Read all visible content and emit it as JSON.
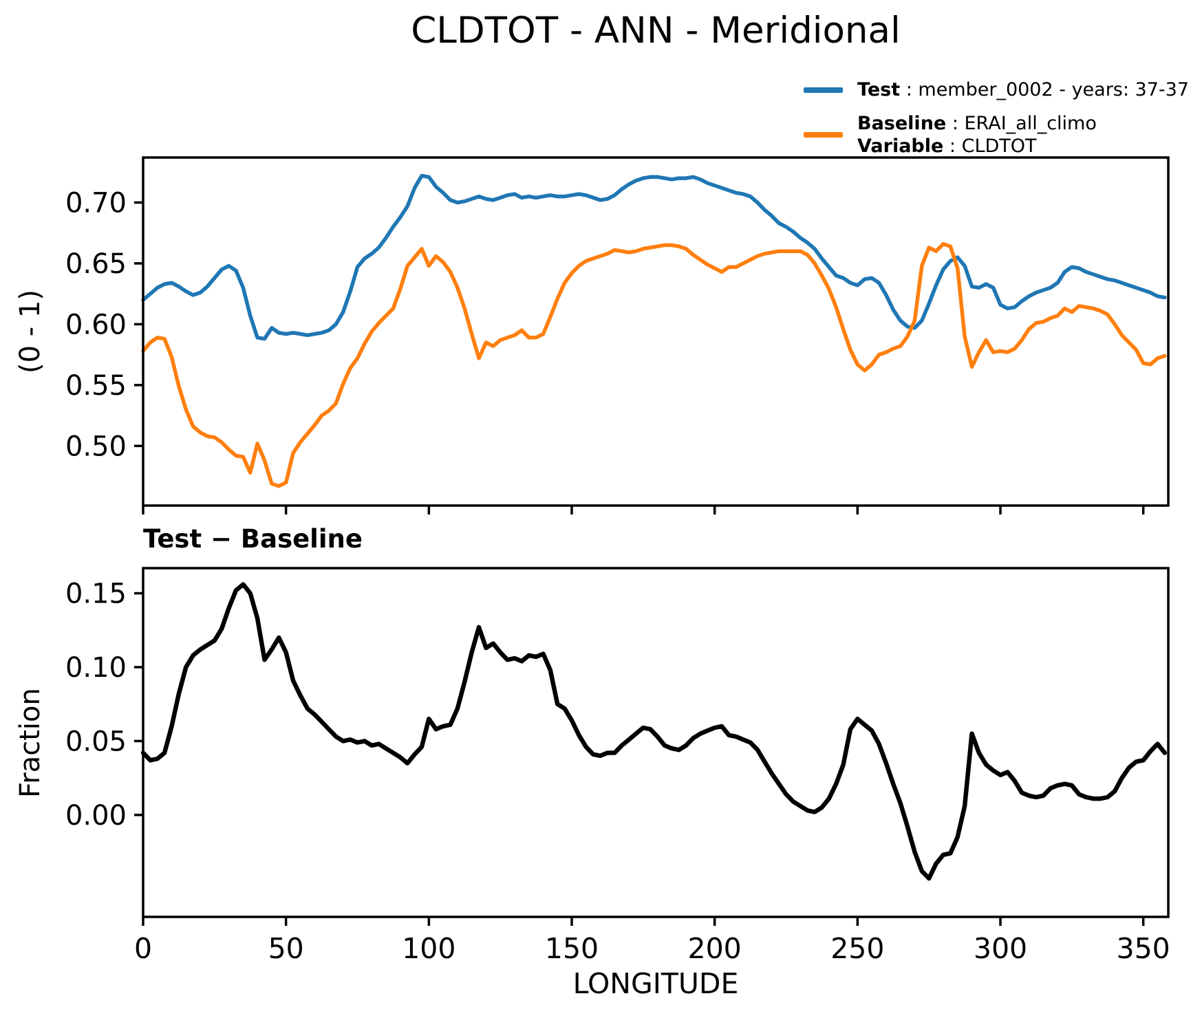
{
  "title": "CLDTOT - ANN - Meridional",
  "legend": {
    "test_bold": "Test",
    "test_rest": " : member_0002 - years: 37-37",
    "baseline_bold": "Baseline",
    "baseline_rest": " : ERAI_all_climo",
    "variable_bold": "Variable",
    "variable_rest": " : CLDTOT"
  },
  "colors": {
    "test": "#1f77b4",
    "baseline": "#ff7f0e",
    "diff": "#000000",
    "axis": "#000000"
  },
  "subtitle_bottom": "Test − Baseline",
  "labels": {
    "top_ylabel": "(0 - 1)",
    "bottom_ylabel": "Fraction",
    "xlabel": "LONGITUDE"
  },
  "chart_data": [
    {
      "type": "line",
      "title": "CLDTOT - ANN - Meridional",
      "xlabel": "",
      "ylabel": "(0 - 1)",
      "xlim": [
        0,
        358.75
      ],
      "ylim": [
        0.451,
        0.737
      ],
      "grid": false,
      "legend_position": "outside upper right",
      "yticks": [
        0.7,
        0.65,
        0.6,
        0.55,
        0.5
      ],
      "ytick_labels": [
        "0.70",
        "0.65",
        "0.60",
        "0.55",
        "0.50"
      ],
      "xticks": [
        0,
        50,
        100,
        150,
        200,
        250,
        300,
        350
      ],
      "xtick_labels": [],
      "x": [
        0,
        2.5,
        5,
        7.5,
        10,
        12.5,
        15,
        17.5,
        20,
        22.5,
        25,
        27.5,
        30,
        32.5,
        35,
        37.5,
        40,
        42.5,
        45,
        47.5,
        50,
        52.5,
        55,
        57.5,
        60,
        62.5,
        65,
        67.5,
        70,
        72.5,
        75,
        77.5,
        80,
        82.5,
        85,
        87.5,
        90,
        92.5,
        95,
        97.5,
        100,
        102.5,
        105,
        107.5,
        110,
        112.5,
        115,
        117.5,
        120,
        122.5,
        125,
        127.5,
        130,
        132.5,
        135,
        137.5,
        140,
        142.5,
        145,
        147.5,
        150,
        152.5,
        155,
        157.5,
        160,
        162.5,
        165,
        167.5,
        170,
        172.5,
        175,
        177.5,
        180,
        182.5,
        185,
        187.5,
        190,
        192.5,
        195,
        197.5,
        200,
        202.5,
        205,
        207.5,
        210,
        212.5,
        215,
        217.5,
        220,
        222.5,
        225,
        227.5,
        230,
        232.5,
        235,
        237.5,
        240,
        242.5,
        245,
        247.5,
        250,
        252.5,
        255,
        257.5,
        260,
        262.5,
        265,
        267.5,
        270,
        272.5,
        275,
        277.5,
        280,
        282.5,
        285,
        287.5,
        290,
        292.5,
        295,
        297.5,
        300,
        302.5,
        305,
        307.5,
        310,
        312.5,
        315,
        317.5,
        320,
        322.5,
        325,
        327.5,
        330,
        332.5,
        335,
        337.5,
        340,
        342.5,
        345,
        347.5,
        350,
        352.5,
        355,
        357.5
      ],
      "series": [
        {
          "name": "Test",
          "label": "Test : member_0002 - years: 37-37",
          "color": "#1f77b4",
          "values": [
            0.62,
            0.625,
            0.63,
            0.633,
            0.634,
            0.631,
            0.627,
            0.624,
            0.626,
            0.631,
            0.638,
            0.645,
            0.648,
            0.644,
            0.63,
            0.607,
            0.589,
            0.588,
            0.597,
            0.593,
            0.592,
            0.593,
            0.592,
            0.591,
            0.592,
            0.593,
            0.595,
            0.6,
            0.61,
            0.627,
            0.647,
            0.654,
            0.658,
            0.663,
            0.671,
            0.68,
            0.688,
            0.697,
            0.712,
            0.722,
            0.721,
            0.713,
            0.708,
            0.702,
            0.7,
            0.701,
            0.703,
            0.705,
            0.703,
            0.702,
            0.704,
            0.706,
            0.707,
            0.704,
            0.705,
            0.704,
            0.705,
            0.706,
            0.705,
            0.705,
            0.706,
            0.707,
            0.706,
            0.704,
            0.702,
            0.703,
            0.706,
            0.711,
            0.715,
            0.718,
            0.72,
            0.721,
            0.721,
            0.72,
            0.719,
            0.72,
            0.72,
            0.721,
            0.719,
            0.716,
            0.714,
            0.712,
            0.71,
            0.708,
            0.707,
            0.705,
            0.7,
            0.694,
            0.689,
            0.683,
            0.68,
            0.676,
            0.671,
            0.667,
            0.662,
            0.654,
            0.647,
            0.64,
            0.638,
            0.634,
            0.632,
            0.637,
            0.638,
            0.634,
            0.624,
            0.612,
            0.603,
            0.598,
            0.597,
            0.603,
            0.617,
            0.632,
            0.645,
            0.652,
            0.655,
            0.648,
            0.631,
            0.63,
            0.633,
            0.63,
            0.616,
            0.613,
            0.614,
            0.619,
            0.623,
            0.626,
            0.628,
            0.63,
            0.634,
            0.643,
            0.647,
            0.646,
            0.643,
            0.641,
            0.639,
            0.637,
            0.636,
            0.634,
            0.632,
            0.63,
            0.628,
            0.626,
            0.623,
            0.622
          ]
        },
        {
          "name": "Baseline",
          "label": "Baseline : ERAI_all_climo  Variable : CLDTOT",
          "color": "#ff7f0e",
          "values": [
            0.578,
            0.585,
            0.589,
            0.588,
            0.573,
            0.549,
            0.53,
            0.516,
            0.511,
            0.508,
            0.507,
            0.503,
            0.497,
            0.492,
            0.491,
            0.478,
            0.502,
            0.488,
            0.469,
            0.467,
            0.47,
            0.494,
            0.503,
            0.51,
            0.517,
            0.525,
            0.529,
            0.535,
            0.551,
            0.564,
            0.572,
            0.584,
            0.594,
            0.601,
            0.607,
            0.613,
            0.629,
            0.648,
            0.655,
            0.662,
            0.648,
            0.656,
            0.651,
            0.643,
            0.63,
            0.613,
            0.592,
            0.572,
            0.585,
            0.582,
            0.587,
            0.589,
            0.591,
            0.595,
            0.589,
            0.589,
            0.592,
            0.606,
            0.621,
            0.634,
            0.642,
            0.648,
            0.652,
            0.654,
            0.656,
            0.658,
            0.661,
            0.66,
            0.659,
            0.66,
            0.662,
            0.663,
            0.664,
            0.665,
            0.665,
            0.664,
            0.662,
            0.657,
            0.653,
            0.649,
            0.646,
            0.643,
            0.647,
            0.647,
            0.65,
            0.653,
            0.656,
            0.658,
            0.659,
            0.66,
            0.66,
            0.66,
            0.66,
            0.657,
            0.65,
            0.64,
            0.629,
            0.614,
            0.596,
            0.579,
            0.567,
            0.562,
            0.567,
            0.575,
            0.577,
            0.58,
            0.582,
            0.59,
            0.603,
            0.648,
            0.663,
            0.66,
            0.666,
            0.664,
            0.646,
            0.59,
            0.565,
            0.577,
            0.587,
            0.577,
            0.578,
            0.577,
            0.58,
            0.587,
            0.596,
            0.601,
            0.602,
            0.605,
            0.607,
            0.613,
            0.61,
            0.615,
            0.614,
            0.613,
            0.611,
            0.608,
            0.6,
            0.591,
            0.585,
            0.579,
            0.568,
            0.567,
            0.572,
            0.574
          ]
        }
      ]
    },
    {
      "type": "line",
      "title": "Test − Baseline",
      "xlabel": "LONGITUDE",
      "ylabel": "Fraction",
      "xlim": [
        0,
        358.75
      ],
      "ylim": [
        -0.069,
        0.167
      ],
      "grid": false,
      "yticks": [
        0.15,
        0.1,
        0.05,
        0.0
      ],
      "ytick_labels": [
        "0.15",
        "0.10",
        "0.05",
        "0.00"
      ],
      "xticks": [
        0,
        50,
        100,
        150,
        200,
        250,
        300,
        350
      ],
      "xtick_labels": [
        "0",
        "50",
        "100",
        "150",
        "200",
        "250",
        "300",
        "350"
      ],
      "x": [
        0,
        2.5,
        5,
        7.5,
        10,
        12.5,
        15,
        17.5,
        20,
        22.5,
        25,
        27.5,
        30,
        32.5,
        35,
        37.5,
        40,
        42.5,
        45,
        47.5,
        50,
        52.5,
        55,
        57.5,
        60,
        62.5,
        65,
        67.5,
        70,
        72.5,
        75,
        77.5,
        80,
        82.5,
        85,
        87.5,
        90,
        92.5,
        95,
        97.5,
        100,
        102.5,
        105,
        107.5,
        110,
        112.5,
        115,
        117.5,
        120,
        122.5,
        125,
        127.5,
        130,
        132.5,
        135,
        137.5,
        140,
        142.5,
        145,
        147.5,
        150,
        152.5,
        155,
        157.5,
        160,
        162.5,
        165,
        167.5,
        170,
        172.5,
        175,
        177.5,
        180,
        182.5,
        185,
        187.5,
        190,
        192.5,
        195,
        197.5,
        200,
        202.5,
        205,
        207.5,
        210,
        212.5,
        215,
        217.5,
        220,
        222.5,
        225,
        227.5,
        230,
        232.5,
        235,
        237.5,
        240,
        242.5,
        245,
        247.5,
        250,
        252.5,
        255,
        257.5,
        260,
        262.5,
        265,
        267.5,
        270,
        272.5,
        275,
        277.5,
        280,
        282.5,
        285,
        287.5,
        290,
        292.5,
        295,
        297.5,
        300,
        302.5,
        305,
        307.5,
        310,
        312.5,
        315,
        317.5,
        320,
        322.5,
        325,
        327.5,
        330,
        332.5,
        335,
        337.5,
        340,
        342.5,
        345,
        347.5,
        350,
        352.5,
        355,
        357.5
      ],
      "series": [
        {
          "name": "Test − Baseline",
          "color": "#000000",
          "values": [
            0.042,
            0.037,
            0.038,
            0.042,
            0.06,
            0.082,
            0.1,
            0.108,
            0.112,
            0.115,
            0.118,
            0.126,
            0.14,
            0.152,
            0.156,
            0.15,
            0.133,
            0.105,
            0.112,
            0.12,
            0.11,
            0.091,
            0.081,
            0.072,
            0.068,
            0.063,
            0.058,
            0.053,
            0.05,
            0.051,
            0.049,
            0.05,
            0.047,
            0.048,
            0.045,
            0.042,
            0.039,
            0.035,
            0.041,
            0.046,
            0.065,
            0.058,
            0.06,
            0.061,
            0.072,
            0.09,
            0.11,
            0.127,
            0.113,
            0.116,
            0.11,
            0.105,
            0.106,
            0.104,
            0.108,
            0.107,
            0.109,
            0.098,
            0.075,
            0.072,
            0.064,
            0.054,
            0.046,
            0.041,
            0.04,
            0.042,
            0.042,
            0.047,
            0.051,
            0.055,
            0.059,
            0.058,
            0.053,
            0.047,
            0.045,
            0.044,
            0.047,
            0.052,
            0.055,
            0.057,
            0.059,
            0.06,
            0.054,
            0.053,
            0.051,
            0.049,
            0.044,
            0.036,
            0.028,
            0.021,
            0.014,
            0.009,
            0.006,
            0.003,
            0.002,
            0.005,
            0.011,
            0.021,
            0.034,
            0.058,
            0.065,
            0.061,
            0.057,
            0.048,
            0.035,
            0.021,
            0.008,
            -0.008,
            -0.025,
            -0.038,
            -0.043,
            -0.033,
            -0.027,
            -0.026,
            -0.015,
            0.006,
            0.055,
            0.042,
            0.034,
            0.03,
            0.027,
            0.029,
            0.023,
            0.015,
            0.013,
            0.012,
            0.013,
            0.018,
            0.02,
            0.021,
            0.02,
            0.014,
            0.012,
            0.011,
            0.011,
            0.012,
            0.016,
            0.025,
            0.032,
            0.036,
            0.037,
            0.043,
            0.048,
            0.042
          ]
        }
      ]
    }
  ]
}
